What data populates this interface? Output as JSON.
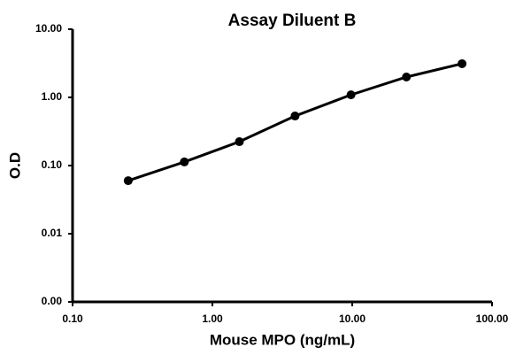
{
  "chart_data": {
    "type": "line",
    "title": "Assay Diluent B",
    "x_label": "Mouse MPO (ng/mL)",
    "y_label": "O.D",
    "xscale": "log",
    "yscale": "log",
    "x": [
      0.25,
      0.63,
      1.56,
      3.9,
      9.8,
      24.4,
      61
    ],
    "series": [
      {
        "name": "Assay Diluent B",
        "color": "#000000",
        "values": [
          0.06,
          0.113,
          0.224,
          0.533,
          1.09,
          1.99,
          3.12
        ]
      }
    ],
    "xlim": [
      0.1,
      100
    ],
    "xticks": [
      {
        "value": 0.1,
        "label": "0.10"
      },
      {
        "value": 1,
        "label": "1.00"
      },
      {
        "value": 10,
        "label": "10.00"
      },
      {
        "value": 100,
        "label": "100.00"
      }
    ],
    "ylim": [
      0.001,
      10
    ],
    "yticks": [
      {
        "value": 0.001,
        "label": "0.00"
      },
      {
        "value": 0.01,
        "label": "0.01"
      },
      {
        "value": 0.1,
        "label": "0.10"
      },
      {
        "value": 1,
        "label": "1.00"
      },
      {
        "value": 10,
        "label": "10.00"
      }
    ],
    "grid": false
  }
}
